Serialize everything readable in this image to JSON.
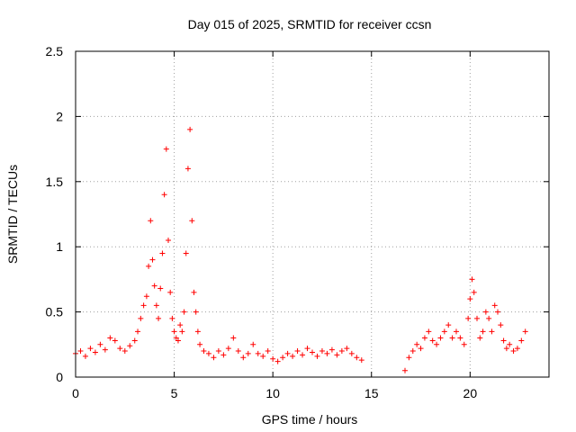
{
  "chart_data": {
    "type": "scatter",
    "title": "Day 015 of 2025, SRMTID for receiver ccsn",
    "xlabel": "GPS time / hours",
    "ylabel": "SRMTID / TECUs",
    "xlim": [
      0,
      24
    ],
    "ylim": [
      0,
      2.5
    ],
    "xticks": [
      0,
      5,
      10,
      15,
      20
    ],
    "xtick_labels": [
      "0",
      "5",
      "10",
      "15",
      "20"
    ],
    "yticks": [
      0,
      0.5,
      1,
      1.5,
      2,
      2.5
    ],
    "ytick_labels": [
      "0",
      "0.5",
      "1",
      "1.5",
      "2",
      "2.5"
    ],
    "grid": true,
    "marker": "+",
    "series": [
      {
        "name": "SRMTID",
        "color": "#ff0000",
        "x": [
          0.0,
          0.25,
          0.5,
          0.75,
          1.0,
          1.25,
          1.5,
          1.75,
          2.0,
          2.25,
          2.5,
          2.75,
          3.0,
          3.15,
          3.3,
          3.45,
          3.6,
          3.7,
          3.8,
          3.9,
          4.0,
          4.1,
          4.2,
          4.3,
          4.4,
          4.5,
          4.6,
          4.7,
          4.8,
          4.9,
          5.0,
          5.1,
          5.2,
          5.3,
          5.4,
          5.5,
          5.6,
          5.7,
          5.8,
          5.9,
          6.0,
          6.1,
          6.2,
          6.3,
          6.5,
          6.75,
          7.0,
          7.25,
          7.5,
          7.75,
          8.0,
          8.25,
          8.5,
          8.75,
          9.0,
          9.25,
          9.5,
          9.75,
          10.0,
          10.25,
          10.5,
          10.75,
          11.0,
          11.25,
          11.5,
          11.75,
          12.0,
          12.25,
          12.5,
          12.75,
          13.0,
          13.25,
          13.5,
          13.75,
          14.0,
          14.25,
          14.5,
          16.7,
          16.9,
          17.1,
          17.3,
          17.5,
          17.7,
          17.9,
          18.1,
          18.3,
          18.5,
          18.7,
          18.9,
          19.1,
          19.3,
          19.5,
          19.7,
          19.9,
          20.0,
          20.1,
          20.2,
          20.35,
          20.5,
          20.65,
          20.8,
          20.95,
          21.1,
          21.25,
          21.4,
          21.55,
          21.7,
          21.85,
          22.0,
          22.2,
          22.4,
          22.6,
          22.8
        ],
        "y": [
          0.18,
          0.2,
          0.16,
          0.22,
          0.19,
          0.25,
          0.21,
          0.3,
          0.28,
          0.22,
          0.2,
          0.24,
          0.28,
          0.35,
          0.45,
          0.55,
          0.62,
          0.85,
          1.2,
          0.9,
          0.7,
          0.55,
          0.45,
          0.68,
          0.95,
          1.4,
          1.75,
          1.05,
          0.65,
          0.45,
          0.35,
          0.3,
          0.28,
          0.4,
          0.35,
          0.5,
          0.95,
          1.6,
          1.9,
          1.2,
          0.65,
          0.5,
          0.35,
          0.25,
          0.2,
          0.18,
          0.15,
          0.2,
          0.17,
          0.22,
          0.3,
          0.2,
          0.15,
          0.18,
          0.25,
          0.18,
          0.16,
          0.2,
          0.14,
          0.12,
          0.15,
          0.18,
          0.16,
          0.2,
          0.17,
          0.22,
          0.19,
          0.16,
          0.2,
          0.18,
          0.21,
          0.17,
          0.2,
          0.22,
          0.18,
          0.15,
          0.13,
          0.05,
          0.15,
          0.2,
          0.25,
          0.22,
          0.3,
          0.35,
          0.28,
          0.25,
          0.3,
          0.35,
          0.4,
          0.3,
          0.35,
          0.3,
          0.25,
          0.45,
          0.6,
          0.75,
          0.65,
          0.45,
          0.3,
          0.35,
          0.5,
          0.45,
          0.35,
          0.55,
          0.5,
          0.4,
          0.28,
          0.22,
          0.25,
          0.2,
          0.22,
          0.28,
          0.35
        ]
      }
    ]
  }
}
